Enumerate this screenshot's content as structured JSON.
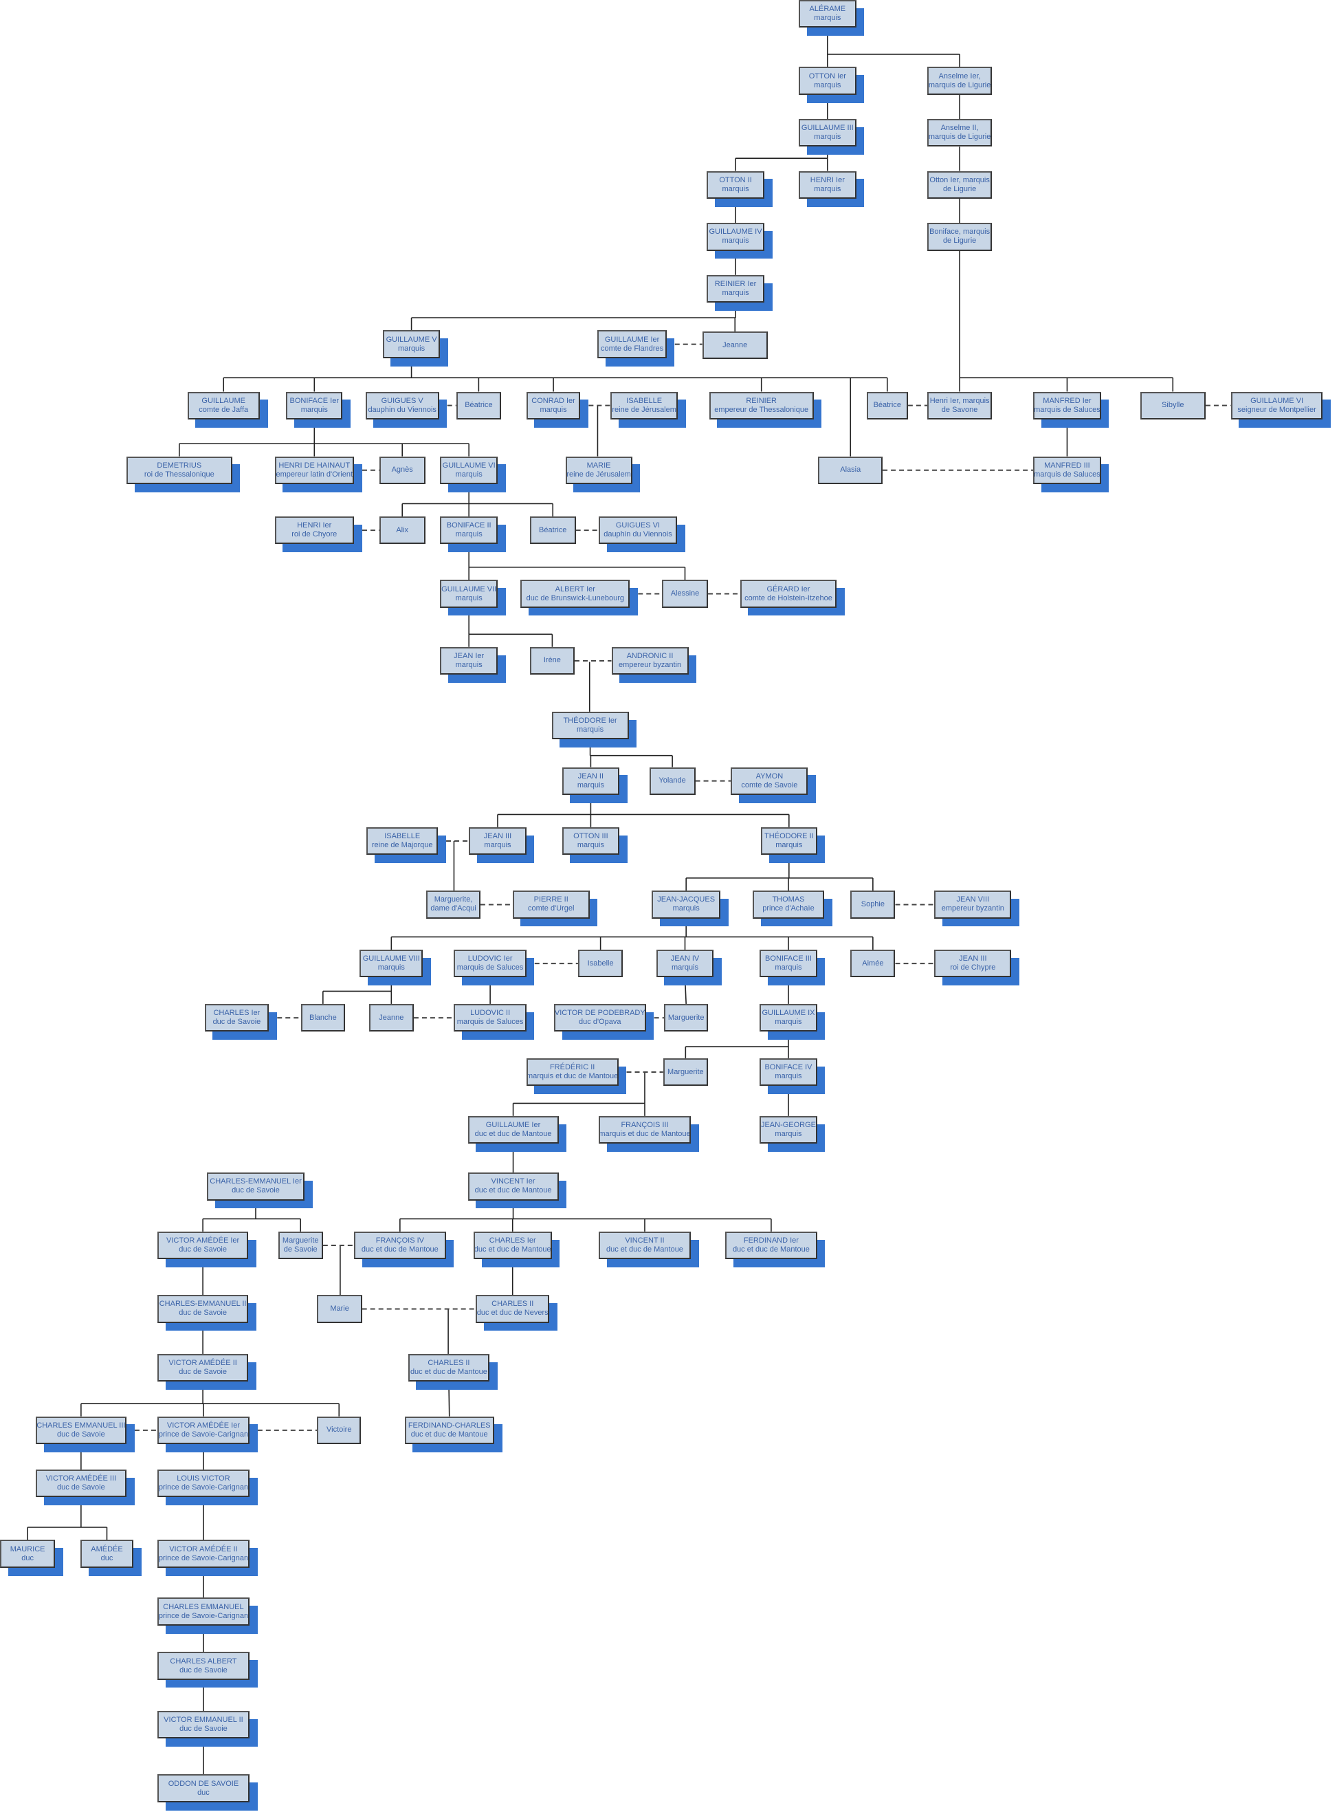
{
  "colors": {
    "box_fill": "#c8d6e6",
    "box_border": "#333333",
    "text": "#3b63a8",
    "shadow": "#3575cf",
    "line": "#222222"
  },
  "people": {
    "alerame": {
      "l1": "ALÉRAME",
      "l2": "marquis"
    },
    "otton1": {
      "l1": "OTTON Ier",
      "l2": "marquis"
    },
    "anselme1": {
      "l1": "Anselme Ier,",
      "l2": "marquis de Ligurie"
    },
    "guillaume3": {
      "l1": "GUILLAUME III",
      "l2": "marquis"
    },
    "anselme2": {
      "l1": "Anselme II,",
      "l2": "marquis de Ligurie"
    },
    "otton2": {
      "l1": "OTTON II",
      "l2": "marquis"
    },
    "henri1": {
      "l1": "HENRI Ier",
      "l2": "marquis"
    },
    "ottonlig": {
      "l1": "Otton Ier, marquis",
      "l2": "de Ligurie"
    },
    "guillaume4": {
      "l1": "GUILLAUME IV",
      "l2": "marquis"
    },
    "bonifacelig": {
      "l1": "Boniface, marquis",
      "l2": "de Ligurie"
    },
    "reinier1": {
      "l1": "REINIER Ier",
      "l2": "marquis"
    },
    "guillaume5": {
      "l1": "GUILLAUME V",
      "l2": "marquis"
    },
    "guillaumefl": {
      "l1": "GUILLAUME Ier",
      "l2": "comte de Flandres"
    },
    "jeanne1": {
      "l1": "Jeanne",
      "l2": ""
    },
    "guillaumejaffa": {
      "l1": "GUILLAUME",
      "l2": "comte de Jaffa"
    },
    "boniface1": {
      "l1": "BONIFACE Ier",
      "l2": "marquis"
    },
    "guigues5": {
      "l1": "GUIGUES V",
      "l2": "dauphin du Viennois"
    },
    "beatrice1": {
      "l1": "Béatrice",
      "l2": ""
    },
    "conrad1": {
      "l1": "CONRAD Ier",
      "l2": "marquis"
    },
    "isabellejer": {
      "l1": "ISABELLE",
      "l2": "reine de Jérusalem"
    },
    "reinieremp": {
      "l1": "REINIER",
      "l2": "empereur de Thessalonique"
    },
    "beatrice2": {
      "l1": "Béatrice",
      "l2": ""
    },
    "henrisavone": {
      "l1": "Henri Ier, marquis",
      "l2": "de Savone"
    },
    "manfred1": {
      "l1": "MANFRED Ier",
      "l2": "marquis de Saluces"
    },
    "sibylle": {
      "l1": "Sibylle",
      "l2": ""
    },
    "guillaume6mont": {
      "l1": "GUILLAUME VI",
      "l2": "seigneur de Montpellier"
    },
    "demetrius": {
      "l1": "DEMETRIUS",
      "l2": "roi de Thessalonique"
    },
    "henrihainaut": {
      "l1": "HENRI DE HAINAUT",
      "l2": "empereur latin d'Orient"
    },
    "agnes": {
      "l1": "Agnès",
      "l2": ""
    },
    "guillaume6": {
      "l1": "GUILLAUME VI",
      "l2": "marquis"
    },
    "mariejer": {
      "l1": "MARIE",
      "l2": "reine de Jérusalem"
    },
    "alasia": {
      "l1": "Alasia",
      "l2": ""
    },
    "manfred3": {
      "l1": "MANFRED III",
      "l2": "marquis de Saluces"
    },
    "henrichypre": {
      "l1": "HENRI Ier",
      "l2": "roi de Chyore"
    },
    "alix": {
      "l1": "Alix",
      "l2": ""
    },
    "boniface2": {
      "l1": "BONIFACE II",
      "l2": "marquis"
    },
    "beatrice3": {
      "l1": "Béatrice",
      "l2": ""
    },
    "guigues6": {
      "l1": "GUIGUES VI",
      "l2": "dauphin du Viennois"
    },
    "guillaume7": {
      "l1": "GUILLAUME VII",
      "l2": "marquis"
    },
    "albert1": {
      "l1": "ALBERT Ier",
      "l2": "duc de Brunswick-Lunebourg"
    },
    "alessine": {
      "l1": "Alessine",
      "l2": ""
    },
    "gerard1": {
      "l1": "GÉRARD Ier",
      "l2": "comte de Holstein-Itzehoe"
    },
    "jean1": {
      "l1": "JEAN Ier",
      "l2": "marquis"
    },
    "irene": {
      "l1": "Irène",
      "l2": ""
    },
    "andronic2": {
      "l1": "ANDRONIC II",
      "l2": "empereur byzantin"
    },
    "theodore1": {
      "l1": "THÉODORE Ier",
      "l2": "marquis"
    },
    "jean2": {
      "l1": "JEAN II",
      "l2": "marquis"
    },
    "yolande": {
      "l1": "Yolande",
      "l2": ""
    },
    "aymon": {
      "l1": "AYMON",
      "l2": "comte de Savoie"
    },
    "isabellemaj": {
      "l1": "ISABELLE",
      "l2": "reine de Majorque"
    },
    "jean3": {
      "l1": "JEAN III",
      "l2": "marquis"
    },
    "otton3": {
      "l1": "OTTON III",
      "l2": "marquis"
    },
    "theodore2": {
      "l1": "THÉODORE II",
      "l2": "marquis"
    },
    "margacqui": {
      "l1": "Marguerite,",
      "l2": "dame d'Acqui"
    },
    "pierre2": {
      "l1": "PIERRE II",
      "l2": "comte d'Urgel"
    },
    "jeanjacques": {
      "l1": "JEAN-JACQUES",
      "l2": "marquis"
    },
    "thomas": {
      "l1": "THOMAS",
      "l2": "prince d'Achaïe"
    },
    "sophie": {
      "l1": "Sophie",
      "l2": ""
    },
    "jean8": {
      "l1": "JEAN VIII",
      "l2": "empereur byzantin"
    },
    "guillaume8": {
      "l1": "GUILLAUME VIII",
      "l2": "marquis"
    },
    "ludovic1": {
      "l1": "LUDOVIC Ier",
      "l2": "marquis de Saluces"
    },
    "isabelle3": {
      "l1": "Isabelle",
      "l2": ""
    },
    "jean4": {
      "l1": "JEAN IV",
      "l2": "marquis"
    },
    "boniface3": {
      "l1": "BONIFACE III",
      "l2": "marquis"
    },
    "aimee": {
      "l1": "Aimée",
      "l2": ""
    },
    "jean3chypre": {
      "l1": "JEAN III",
      "l2": "roi de Chypre"
    },
    "charles1sav": {
      "l1": "CHARLES Ier",
      "l2": "duc de Savoie"
    },
    "blanche": {
      "l1": "Blanche",
      "l2": ""
    },
    "jeanne2": {
      "l1": "Jeanne",
      "l2": ""
    },
    "ludovic2": {
      "l1": "LUDOVIC II",
      "l2": "marquis de Saluces"
    },
    "victorpod": {
      "l1": "VICTOR DE PODEBRADY",
      "l2": "duc d'Opava"
    },
    "marguerite2": {
      "l1": "Marguerite",
      "l2": ""
    },
    "guillaume9": {
      "l1": "GUILLAUME IX",
      "l2": "marquis"
    },
    "frederic2": {
      "l1": "FRÉDÉRIC II",
      "l2": "marquis et duc de Mantoue"
    },
    "marguerite3": {
      "l1": "Marguerite",
      "l2": ""
    },
    "boniface4": {
      "l1": "BONIFACE IV",
      "l2": "marquis"
    },
    "guillaume1mant": {
      "l1": "GUILLAUME Ier",
      "l2": "duc et duc de Mantoue"
    },
    "francois3": {
      "l1": "FRANÇOIS III",
      "l2": "marquis et duc de Mantoue"
    },
    "jeangeorge": {
      "l1": "JEAN-GEORGE",
      "l2": "marquis"
    },
    "ce1": {
      "l1": "CHARLES-EMMANUEL Ier",
      "l2": "duc de Savoie"
    },
    "vincent1": {
      "l1": "VINCENT Ier",
      "l2": "duc et duc de Mantoue"
    },
    "va1": {
      "l1": "VICTOR AMÉDÉE Ier",
      "l2": "duc de Savoie"
    },
    "margsavoie": {
      "l1": "Marguerite",
      "l2": "de Savoie"
    },
    "francois4": {
      "l1": "FRANÇOIS IV",
      "l2": "duc et duc de Mantoue"
    },
    "charles1mant": {
      "l1": "CHARLES Ier",
      "l2": "duc et duc de Mantoue"
    },
    "vincent2": {
      "l1": "VINCENT II",
      "l2": "duc et duc de Mantoue"
    },
    "ferdinand1": {
      "l1": "FERDINAND Ier",
      "l2": "duc et duc de Mantoue"
    },
    "ce2": {
      "l1": "CHARLES-EMMANUEL II",
      "l2": "duc de Savoie"
    },
    "marie2": {
      "l1": "Marie",
      "l2": ""
    },
    "charles2nevers": {
      "l1": "CHARLES II",
      "l2": "duc et duc de Nevers"
    },
    "va2": {
      "l1": "VICTOR AMÉDÉE II",
      "l2": "duc de Savoie"
    },
    "charles2mant": {
      "l1": "CHARLES II",
      "l2": "duc et duc de Mantoue"
    },
    "ce3": {
      "l1": "CHARLES EMMANUEL III",
      "l2": "duc de Savoie"
    },
    "va1car": {
      "l1": "VICTOR AMÉDÉE Ier",
      "l2": "prince de Savoie-Carignan"
    },
    "victoire": {
      "l1": "Victoire",
      "l2": ""
    },
    "ferdcharles": {
      "l1": "FERDINAND-CHARLES",
      "l2": "duc et duc de Mantoue"
    },
    "va3": {
      "l1": "VICTOR AMÉDÉE III",
      "l2": "duc de Savoie"
    },
    "louisvictor": {
      "l1": "LOUIS VICTOR",
      "l2": "prince de Savoie-Carignan"
    },
    "maurice": {
      "l1": "MAURICE",
      "l2": "duc"
    },
    "amedee": {
      "l1": "AMÉDÉE",
      "l2": "duc"
    },
    "va2car": {
      "l1": "VICTOR AMÉDÉE II",
      "l2": "prince de Savoie-Carignan"
    },
    "cecar": {
      "l1": "CHARLES EMMANUEL",
      "l2": "prince de Savoie-Carignan"
    },
    "charlesalbert": {
      "l1": "CHARLES ALBERT",
      "l2": "duc de Savoie"
    },
    "ve2": {
      "l1": "VICTOR EMMANUEL II",
      "l2": "duc de Savoie"
    },
    "oddon": {
      "l1": "ODDON DE SAVOIE",
      "l2": "duc"
    }
  }
}
